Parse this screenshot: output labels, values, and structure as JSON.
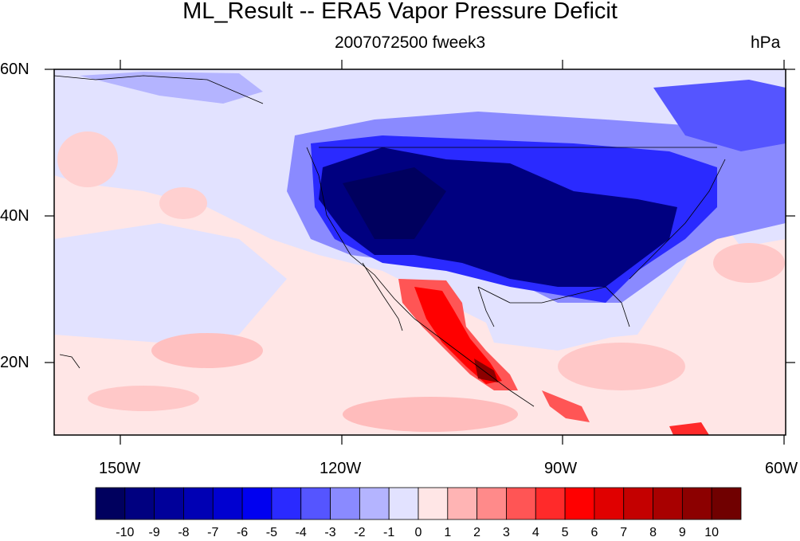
{
  "figure": {
    "title": "ML_Result -- ERA5 Vapor Pressure Deficit",
    "subtitle": "2007072500 fweek3",
    "units": "hPa"
  },
  "axes": {
    "lat_labels": [
      "60N",
      "40N",
      "20N"
    ],
    "lon_labels": [
      "150W",
      "120W",
      "90W",
      "60W"
    ]
  },
  "colorbar": {
    "labels": [
      "-10",
      "-9",
      "-8",
      "-7",
      "-6",
      "-5",
      "-4",
      "-3",
      "-2",
      "-1",
      "0",
      "1",
      "2",
      "3",
      "4",
      "5",
      "6",
      "7",
      "8",
      "9",
      "10"
    ],
    "colors": [
      "#00005e",
      "#000080",
      "#00009a",
      "#0000b4",
      "#0000d0",
      "#0000f0",
      "#2a2aff",
      "#5555ff",
      "#8a8aff",
      "#b4b4ff",
      "#e2e2ff",
      "#ffe6e6",
      "#ffb4b4",
      "#ff8a8a",
      "#ff5555",
      "#ff2a2a",
      "#ff0000",
      "#e00000",
      "#c40000",
      "#a80000",
      "#8c0000",
      "#700000"
    ]
  }
}
